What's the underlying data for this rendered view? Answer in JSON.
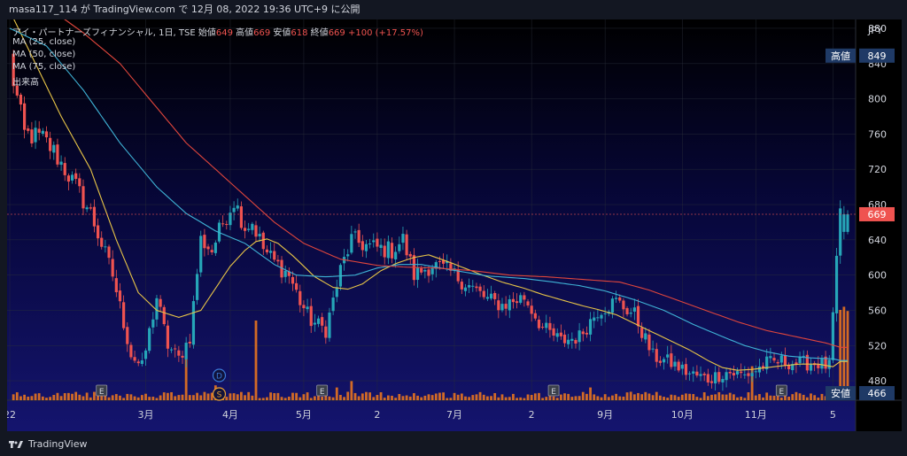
{
  "header": {
    "publish_text": "masa117_114 が TradingView.com で 12月 08, 2022 19:36 UTC+9 に公開"
  },
  "legend": {
    "symbol_line": "アイ・パートナーズフィナンシャル, 1日, TSE",
    "ohlc": [
      {
        "label": "始値",
        "value": "649"
      },
      {
        "label": "高値",
        "value": "669"
      },
      {
        "label": "安値",
        "value": "618"
      },
      {
        "label": "終値",
        "value": "669"
      }
    ],
    "change": "+100 (+17.57%)",
    "indicators": [
      "MA (25, close)",
      "MA (50, close)",
      "MA (75, close)",
      "出来高"
    ]
  },
  "footer": {
    "brand": "TradingView"
  },
  "colors": {
    "up": "#26a6b8",
    "down": "#ef5350",
    "ma25": "#e8c547",
    "ma50": "#3fb3d6",
    "ma75": "#e0463c",
    "volume": "#e8741f",
    "axis_text": "#d1d4dc",
    "badge_bg": "#1f3a66"
  },
  "chart_data": {
    "type": "candlestick",
    "currency": "JPY",
    "ylim": [
      458,
      890
    ],
    "y_ticks": [
      480,
      520,
      560,
      600,
      640,
      680,
      720,
      760,
      800,
      840,
      880
    ],
    "x_labels": [
      {
        "label": "22",
        "i": 0
      },
      {
        "label": "3月",
        "i": 37
      },
      {
        "label": "4月",
        "i": 60
      },
      {
        "label": "5月",
        "i": 80
      },
      {
        "label": "2",
        "i": 100
      },
      {
        "label": "7月",
        "i": 121
      },
      {
        "label": "2",
        "i": 142
      },
      {
        "label": "9月",
        "i": 162
      },
      {
        "label": "10月",
        "i": 183
      },
      {
        "label": "11月",
        "i": 203
      },
      {
        "label": "5",
        "i": 224
      }
    ],
    "markers": [
      {
        "label": "高値",
        "value": 849,
        "display": "849"
      },
      {
        "label": "安値",
        "value": 466,
        "display": "466"
      }
    ],
    "last_price": 669,
    "events": [
      {
        "type": "E",
        "i": 25
      },
      {
        "type": "D",
        "i": 57
      },
      {
        "type": "S",
        "i": 57
      },
      {
        "type": "E",
        "i": 85
      },
      {
        "type": "E",
        "i": 148
      },
      {
        "type": "E",
        "i": 210
      }
    ],
    "keyframes": [
      [
        0,
        845
      ],
      [
        1,
        820
      ],
      [
        4,
        760
      ],
      [
        9,
        755
      ],
      [
        12,
        740
      ],
      [
        18,
        700
      ],
      [
        22,
        670
      ],
      [
        28,
        600
      ],
      [
        33,
        510
      ],
      [
        36,
        495
      ],
      [
        40,
        575
      ],
      [
        43,
        520
      ],
      [
        46,
        505
      ],
      [
        49,
        530
      ],
      [
        52,
        640
      ],
      [
        55,
        628
      ],
      [
        58,
        660
      ],
      [
        61,
        685
      ],
      [
        64,
        655
      ],
      [
        66,
        660
      ],
      [
        69,
        630
      ],
      [
        72,
        615
      ],
      [
        76,
        600
      ],
      [
        79,
        570
      ],
      [
        82,
        548
      ],
      [
        86,
        538
      ],
      [
        90,
        605
      ],
      [
        93,
        640
      ],
      [
        98,
        632
      ],
      [
        104,
        628
      ],
      [
        107,
        640
      ],
      [
        110,
        600
      ],
      [
        115,
        612
      ],
      [
        120,
        603
      ],
      [
        125,
        588
      ],
      [
        130,
        572
      ],
      [
        134,
        566
      ],
      [
        140,
        575
      ],
      [
        145,
        540
      ],
      [
        150,
        525
      ],
      [
        155,
        530
      ],
      [
        160,
        560
      ],
      [
        165,
        570
      ],
      [
        170,
        555
      ],
      [
        175,
        508
      ],
      [
        180,
        500
      ],
      [
        185,
        488
      ],
      [
        190,
        482
      ],
      [
        195,
        490
      ],
      [
        200,
        486
      ],
      [
        203,
        492
      ],
      [
        206,
        500
      ],
      [
        210,
        502
      ],
      [
        215,
        500
      ],
      [
        220,
        500
      ],
      [
        223,
        496
      ],
      [
        226,
        669
      ]
    ],
    "volume_spikes": [
      [
        48,
        0.42
      ],
      [
        56,
        0.14
      ],
      [
        67,
        0.75
      ],
      [
        89,
        0.12
      ],
      [
        93,
        0.18
      ],
      [
        158,
        0.12
      ],
      [
        202,
        0.32
      ],
      [
        226,
        0.85
      ],
      [
        227,
        0.88
      ],
      [
        228,
        0.84
      ]
    ],
    "series": [
      {
        "name": "MA (25, close)",
        "keyframes": [
          [
            0,
            900
          ],
          [
            14,
            780
          ],
          [
            22,
            720
          ],
          [
            29,
            640
          ],
          [
            35,
            580
          ],
          [
            40,
            560
          ],
          [
            46,
            552
          ],
          [
            52,
            560
          ],
          [
            56,
            585
          ],
          [
            60,
            610
          ],
          [
            64,
            628
          ],
          [
            67,
            638
          ],
          [
            70,
            641
          ],
          [
            73,
            636
          ],
          [
            77,
            622
          ],
          [
            83,
            598
          ],
          [
            88,
            586
          ],
          [
            92,
            584
          ],
          [
            96,
            590
          ],
          [
            101,
            605
          ],
          [
            105,
            613
          ],
          [
            110,
            620
          ],
          [
            114,
            623
          ],
          [
            120,
            614
          ],
          [
            128,
            601
          ],
          [
            134,
            592
          ],
          [
            140,
            585
          ],
          [
            145,
            578
          ],
          [
            150,
            572
          ],
          [
            156,
            565
          ],
          [
            160,
            561
          ],
          [
            165,
            555
          ],
          [
            170,
            545
          ],
          [
            175,
            535
          ],
          [
            180,
            525
          ],
          [
            185,
            515
          ],
          [
            190,
            503
          ],
          [
            194,
            495
          ],
          [
            198,
            492
          ],
          [
            202,
            493
          ],
          [
            206,
            495
          ],
          [
            210,
            497
          ],
          [
            215,
            499
          ],
          [
            220,
            499
          ],
          [
            224,
            496
          ],
          [
            226,
            502
          ]
        ]
      },
      {
        "name": "MA (50, close)",
        "keyframes": [
          [
            0,
            880
          ],
          [
            10,
            860
          ],
          [
            20,
            810
          ],
          [
            30,
            750
          ],
          [
            40,
            700
          ],
          [
            48,
            670
          ],
          [
            56,
            650
          ],
          [
            64,
            636
          ],
          [
            72,
            612
          ],
          [
            78,
            600
          ],
          [
            86,
            598
          ],
          [
            94,
            600
          ],
          [
            100,
            608
          ],
          [
            106,
            612
          ],
          [
            112,
            612
          ],
          [
            120,
            606
          ],
          [
            130,
            599
          ],
          [
            140,
            596
          ],
          [
            148,
            592
          ],
          [
            155,
            588
          ],
          [
            162,
            582
          ],
          [
            170,
            572
          ],
          [
            178,
            560
          ],
          [
            186,
            544
          ],
          [
            194,
            530
          ],
          [
            200,
            520
          ],
          [
            206,
            513
          ],
          [
            212,
            508
          ],
          [
            218,
            506
          ],
          [
            224,
            505
          ],
          [
            226,
            503
          ]
        ]
      },
      {
        "name": "MA (75, close)",
        "keyframes": [
          [
            0,
            920
          ],
          [
            10,
            905
          ],
          [
            20,
            875
          ],
          [
            30,
            840
          ],
          [
            40,
            790
          ],
          [
            48,
            750
          ],
          [
            56,
            720
          ],
          [
            64,
            690
          ],
          [
            72,
            660
          ],
          [
            80,
            636
          ],
          [
            90,
            618
          ],
          [
            100,
            611
          ],
          [
            108,
            609
          ],
          [
            116,
            608
          ],
          [
            126,
            605
          ],
          [
            136,
            600
          ],
          [
            146,
            598
          ],
          [
            156,
            595
          ],
          [
            166,
            592
          ],
          [
            174,
            583
          ],
          [
            182,
            571
          ],
          [
            190,
            559
          ],
          [
            198,
            547
          ],
          [
            206,
            537
          ],
          [
            214,
            530
          ],
          [
            222,
            523
          ],
          [
            226,
            518
          ]
        ]
      }
    ]
  }
}
